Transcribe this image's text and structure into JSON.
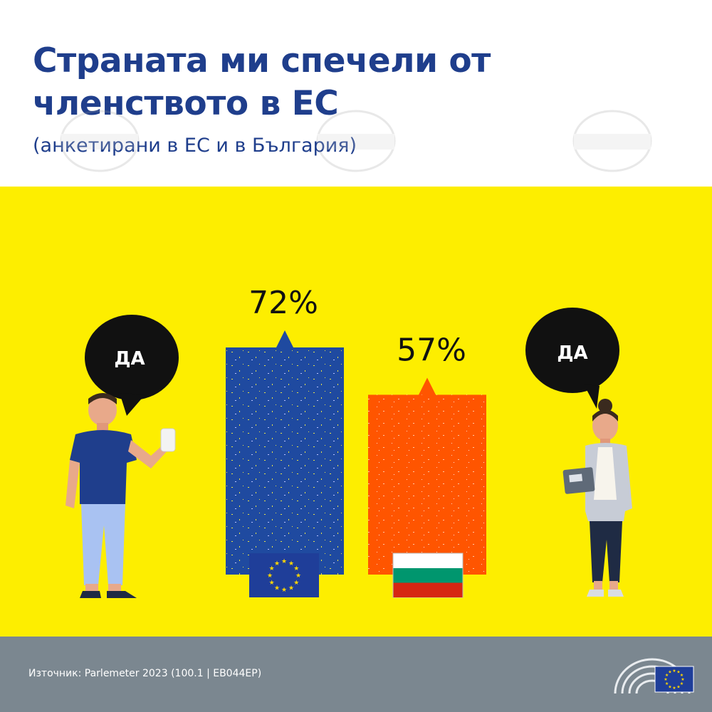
{
  "header": {
    "title": "Страната ми спечели от членството в ЕС",
    "subtitle": "(анкетирани в ЕС и в България)"
  },
  "bubbles": {
    "left": "ДА",
    "right": "ДА"
  },
  "footer": {
    "source": "Източник: Parlemeter 2023 (100.1 | EB044EP)"
  },
  "colors": {
    "title": "#1f3e8c",
    "background": "#fdee00",
    "eu_bar": "#1f4aa0",
    "bg_bar": "#ff5500",
    "footer": "#7b8790"
  },
  "chart_data": {
    "type": "bar",
    "categories": [
      "ЕС",
      "България"
    ],
    "values": [
      72,
      57
    ],
    "value_labels": [
      "72%",
      "57%"
    ],
    "category_icons": [
      "eu-flag-icon",
      "bulgaria-flag-icon"
    ],
    "ylim": [
      0,
      100
    ]
  }
}
